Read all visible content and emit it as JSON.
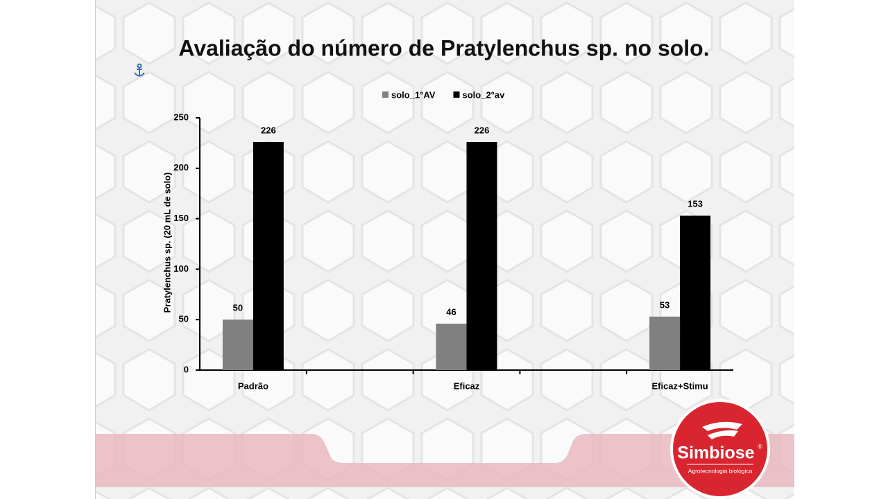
{
  "chart_data": {
    "type": "bar",
    "title": "Avaliação do número de Pratylenchus sp. no solo.",
    "y_label": "Pratylenchus sp. (20 mL de solo)",
    "categories": [
      "Padrão",
      null,
      "Eficaz",
      null,
      "Eficaz+Stimu"
    ],
    "series": [
      {
        "name": "solo_1°AV",
        "color": "#808080",
        "values": [
          50,
          null,
          46,
          null,
          53
        ]
      },
      {
        "name": "solo_2°av",
        "color": "#000000",
        "values": [
          226,
          null,
          226,
          null,
          153
        ]
      }
    ],
    "ylim": [
      0,
      250
    ],
    "yticks": [
      0,
      50,
      100,
      150,
      200,
      250
    ],
    "grid": false,
    "legend": "top",
    "data_labels": true
  },
  "logo": {
    "name": "Simbiose",
    "mark": "®",
    "tagline": "Agrotecnologia biológica"
  }
}
